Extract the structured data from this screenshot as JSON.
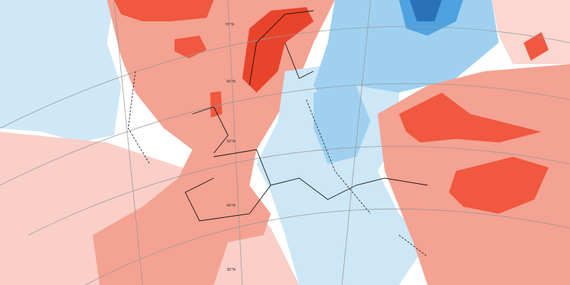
{
  "map": {
    "graticule_labels": [
      "70°N",
      "60°N",
      "50°N",
      "40°N",
      "30°N"
    ]
  }
}
